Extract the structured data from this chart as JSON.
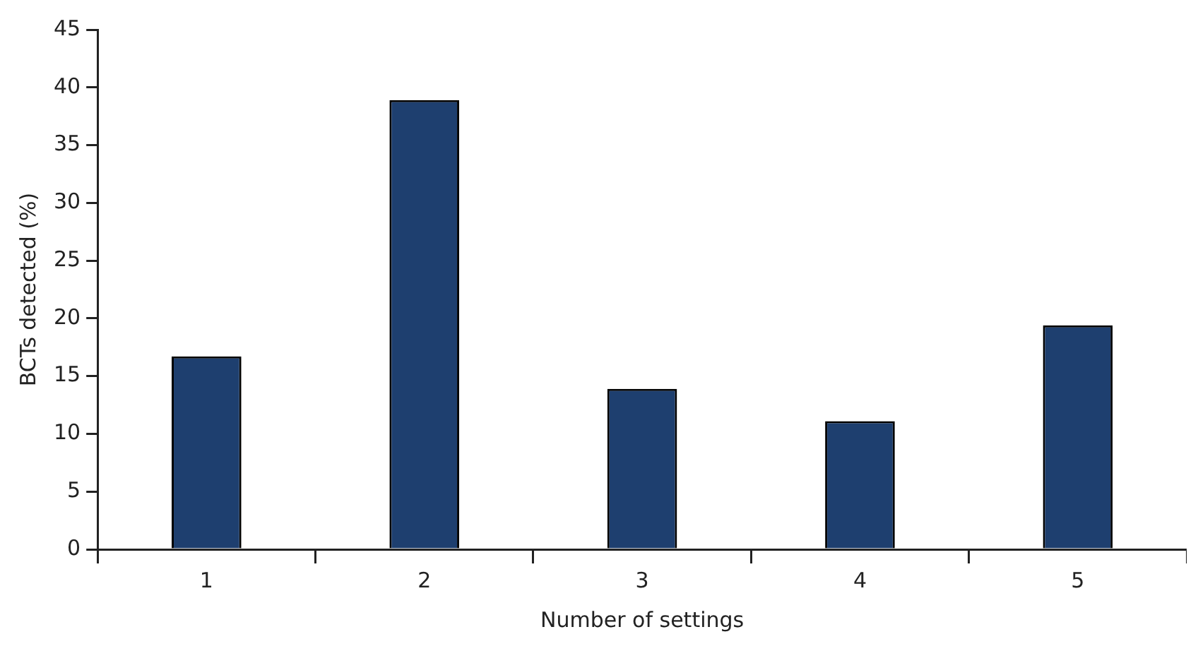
{
  "chart_data": {
    "type": "bar",
    "xlabel": "Number of settings",
    "ylabel": "BCTs detected (%)",
    "categories": [
      "1",
      "2",
      "3",
      "4",
      "5"
    ],
    "values": [
      16.7,
      38.9,
      13.9,
      11.1,
      19.4
    ],
    "color": "#1e3f6f",
    "ylim": [
      0,
      45
    ],
    "yticks": [
      0,
      5,
      10,
      15,
      20,
      25,
      30,
      35,
      40,
      45
    ],
    "grid": false,
    "legend": false
  }
}
